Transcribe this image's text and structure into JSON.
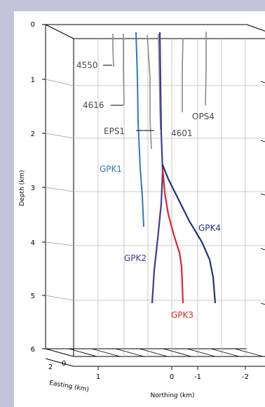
{
  "chart_data": {
    "type": "diagram-3d-well-trajectories",
    "depth_axis": {
      "label": "Depth (km)",
      "ticks": [
        "0",
        "1",
        "2",
        "3",
        "4",
        "5",
        "6"
      ]
    },
    "northing_axis": {
      "label": "Northing (km)",
      "ticks": [
        "1",
        "0",
        "-1",
        "-2"
      ]
    },
    "easting_axis": {
      "label": "Easting (km)",
      "ticks": [
        "2",
        "0"
      ]
    },
    "wells": [
      {
        "name": "4550",
        "color": "#8c8c8c"
      },
      {
        "name": "4616",
        "color": "#8c8c8c"
      },
      {
        "name": "EPS1",
        "color": "#8c8c8c"
      },
      {
        "name": "4601",
        "color": "#8c8c8c"
      },
      {
        "name": "OPS4",
        "color": "#8c8c8c"
      },
      {
        "name": "GPK1",
        "color": "#2e78be"
      },
      {
        "name": "GPK2",
        "color": "#3e3a9a"
      },
      {
        "name": "GPK3",
        "color": "#e4222a"
      },
      {
        "name": "GPK4",
        "color": "#24327a"
      }
    ]
  }
}
